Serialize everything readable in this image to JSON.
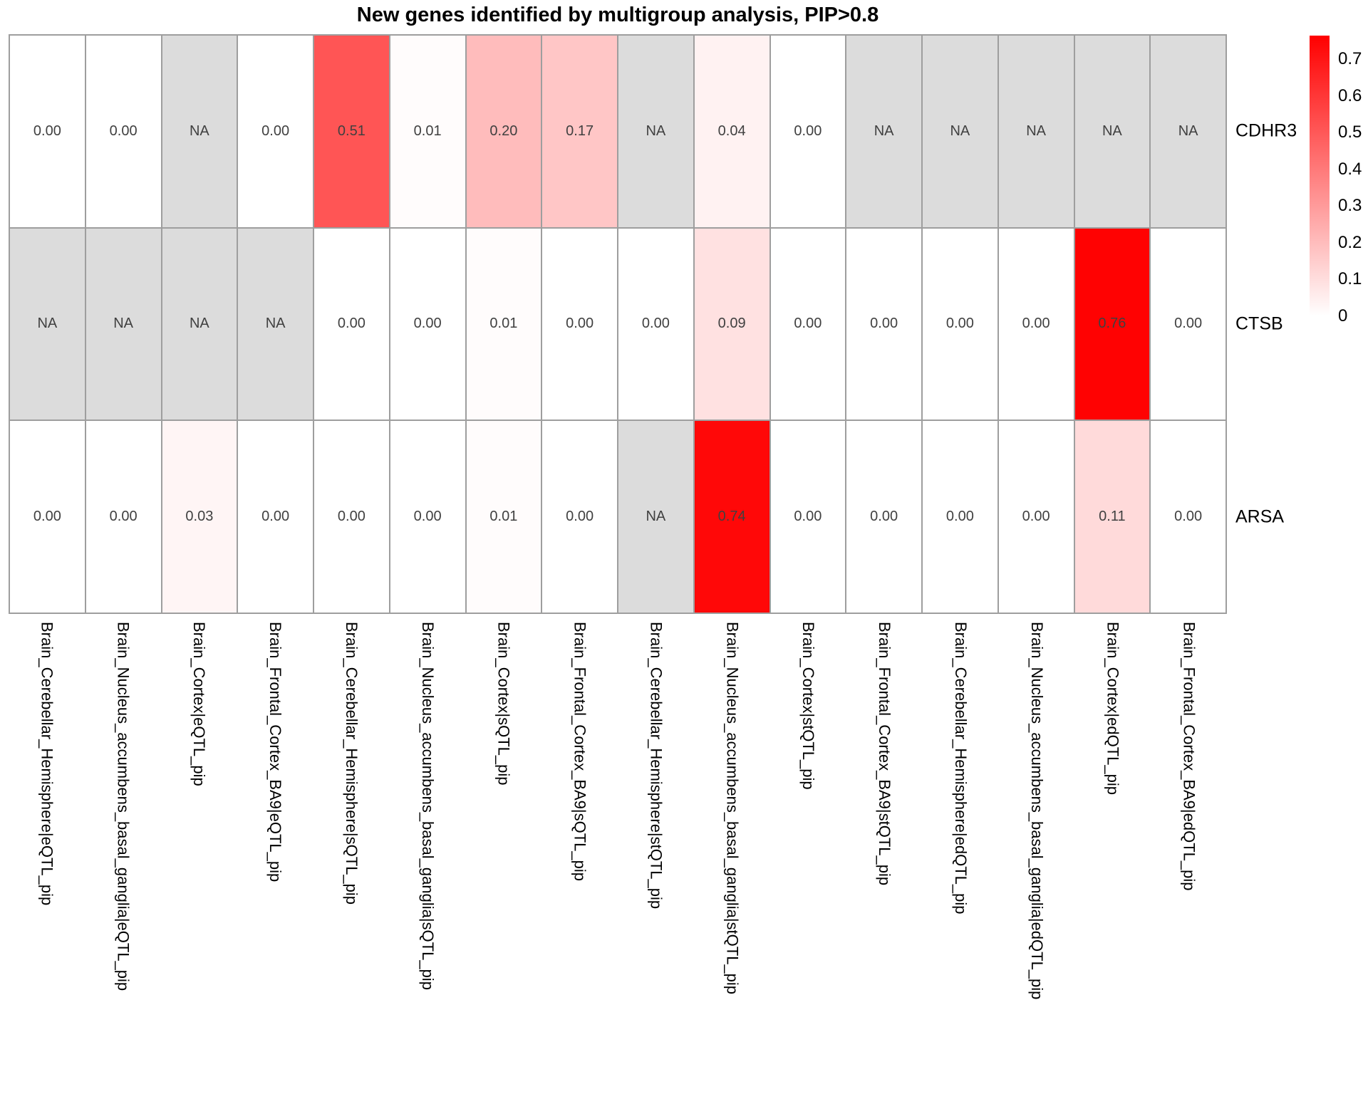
{
  "chart_data": {
    "type": "heatmap",
    "title": "New genes identified by multigroup analysis, PIP>0.8",
    "rows": [
      "CDHR3",
      "CTSB",
      "ARSA"
    ],
    "columns": [
      "Brain_Cerebellar_Hemisphere|eQTL_pip",
      "Brain_Nucleus_accumbens_basal_ganglia|eQTL_pip",
      "Brain_Cortex|eQTL_pip",
      "Brain_Frontal_Cortex_BA9|eQTL_pip",
      "Brain_Cerebellar_Hemisphere|sQTL_pip",
      "Brain_Nucleus_accumbens_basal_ganglia|sQTL_pip",
      "Brain_Cortex|sQTL_pip",
      "Brain_Frontal_Cortex_BA9|sQTL_pip",
      "Brain_Cerebellar_Hemisphere|stQTL_pip",
      "Brain_Nucleus_accumbens_basal_ganglia|stQTL_pip",
      "Brain_Cortex|stQTL_pip",
      "Brain_Frontal_Cortex_BA9|stQTL_pip",
      "Brain_Cerebellar_Hemisphere|edQTL_pip",
      "Brain_Nucleus_accumbens_basal_ganglia|edQTL_pip",
      "Brain_Cortex|edQTL_pip",
      "Brain_Frontal_Cortex_BA9|edQTL_pip"
    ],
    "values": [
      [
        0.0,
        0.0,
        null,
        0.0,
        0.51,
        0.01,
        0.2,
        0.17,
        null,
        0.04,
        0.0,
        null,
        null,
        null,
        null,
        null
      ],
      [
        null,
        null,
        null,
        null,
        0.0,
        0.0,
        0.01,
        0.0,
        0.0,
        0.09,
        0.0,
        0.0,
        0.0,
        0.0,
        0.76,
        0.0
      ],
      [
        0.0,
        0.0,
        0.03,
        0.0,
        0.0,
        0.0,
        0.01,
        0.0,
        null,
        0.74,
        0.0,
        0.0,
        0.0,
        0.0,
        0.11,
        0.0
      ]
    ],
    "na_label": "NA",
    "value_decimals": 2,
    "colors": {
      "low": "#FFFFFF",
      "high": "#FF0000",
      "na": "#DCDCDC",
      "border": "#9E9E9E",
      "cell_text": "#404040"
    },
    "scale": {
      "min": 0,
      "max": 0.765
    },
    "legend": {
      "position": "right",
      "ticks": [
        "0.7",
        "0.6",
        "0.5",
        "0.4",
        "0.3",
        "0.2",
        "0.1",
        "0"
      ]
    },
    "layout_hints": {
      "grid": "off",
      "x_label_rotation": 90,
      "row_labels_side": "right"
    }
  }
}
